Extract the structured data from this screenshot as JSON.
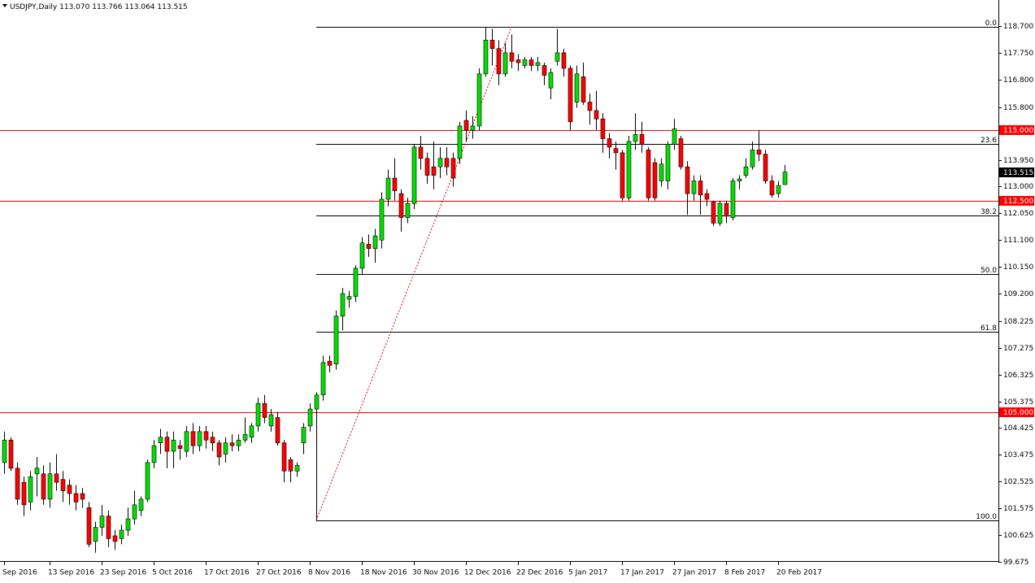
{
  "chart_data": {
    "type": "candlestick",
    "symbol": "USDJPY,Daily",
    "quote_labels": [
      "113.070",
      "113.766",
      "113.064",
      "113.515"
    ],
    "categories": [
      "Sep 2016",
      null,
      null,
      null,
      null,
      null,
      null,
      "13 Sep 2016",
      null,
      null,
      null,
      null,
      null,
      null,
      null,
      "23 Sep 2016",
      null,
      null,
      null,
      null,
      null,
      null,
      null,
      "5 Oct 2016",
      null,
      null,
      null,
      null,
      null,
      null,
      null,
      "17 Oct 2016",
      null,
      null,
      null,
      null,
      null,
      null,
      null,
      "27 Oct 2016",
      null,
      null,
      null,
      null,
      null,
      null,
      null,
      "8 Nov 2016",
      null,
      null,
      null,
      null,
      null,
      null,
      null,
      "18 Nov 2016",
      null,
      null,
      null,
      null,
      null,
      null,
      null,
      "30 Nov 2016",
      null,
      null,
      null,
      null,
      null,
      null,
      null,
      "12 Dec 2016",
      null,
      null,
      null,
      null,
      null,
      null,
      null,
      "22 Dec 2016",
      null,
      null,
      null,
      null,
      null,
      null,
      null,
      "5 Jan 2017",
      null,
      null,
      null,
      null,
      null,
      null,
      null,
      "17 Jan 2017",
      null,
      null,
      null,
      null,
      null,
      null,
      null,
      "27 Jan 2017",
      null,
      null,
      null,
      null,
      null,
      null,
      null,
      "8 Feb 2017",
      null,
      null,
      null,
      null,
      null,
      null,
      null,
      "20 Feb 2017",
      null
    ],
    "open": [
      103.2,
      104.0,
      103.0,
      102.5,
      101.8,
      102.8,
      102.8,
      101.9,
      102.8,
      102.6,
      102.4,
      102.1,
      102.1,
      101.6,
      100.4,
      100.9,
      101.3,
      100.6,
      100.5,
      100.8,
      101.2,
      101.5,
      101.9,
      103.2,
      103.9,
      104.1,
      103.6,
      103.8,
      103.6,
      104.3,
      103.8,
      104.3,
      104.1,
      103.9,
      103.5,
      103.9,
      103.8,
      104.0,
      104.1,
      104.5,
      105.3,
      104.5,
      104.8,
      103.9,
      103.3,
      102.9,
      103.9,
      104.5,
      105.1,
      105.6,
      106.8,
      106.7,
      108.4,
      109.0,
      109.1,
      110.1,
      110.95,
      110.8,
      111.1,
      112.55,
      113.3,
      112.75,
      111.9,
      112.4,
      114.4,
      114.0,
      113.7,
      113.7,
      114.0,
      114.0,
      114.0,
      115.35,
      115.0,
      115.15,
      117.0,
      118.2,
      117.9,
      117.0,
      117.75,
      117.5,
      117.3,
      117.5,
      117.3,
      117.3,
      116.5,
      117.45,
      117.75,
      117.2,
      116.0,
      116.9,
      116.0,
      115.7,
      115.4,
      114.7,
      114.35,
      114.2,
      112.6,
      114.6,
      114.85,
      114.3,
      113.85,
      113.2,
      113.2,
      114.5,
      114.7,
      113.7,
      112.75,
      113.2,
      112.75,
      112.45,
      111.7,
      112.4,
      111.9,
      113.2,
      113.4,
      113.7,
      114.3,
      114.15,
      113.2,
      112.75,
      113.07
    ],
    "high": [
      104.3,
      104.1,
      103.2,
      102.7,
      102.9,
      103.4,
      103.1,
      103.2,
      103.5,
      102.9,
      102.6,
      102.4,
      102.3,
      101.8,
      101.1,
      101.7,
      101.5,
      100.8,
      101.0,
      101.6,
      102.2,
      102.0,
      103.3,
      104.0,
      104.4,
      104.3,
      104.3,
      104.0,
      104.5,
      104.6,
      104.5,
      104.5,
      104.3,
      104.0,
      104.1,
      104.2,
      104.2,
      104.8,
      104.6,
      105.5,
      105.6,
      105.1,
      105.0,
      104.0,
      103.4,
      103.2,
      104.6,
      105.3,
      105.7,
      107.0,
      107.0,
      108.6,
      109.4,
      109.3,
      110.2,
      111.2,
      111.3,
      111.5,
      112.8,
      113.6,
      114.0,
      112.9,
      112.6,
      114.5,
      114.8,
      114.2,
      114.6,
      114.4,
      114.4,
      114.2,
      115.3,
      115.7,
      115.5,
      117.2,
      118.66,
      118.6,
      118.2,
      118.1,
      118.4,
      117.7,
      117.6,
      117.6,
      117.6,
      117.4,
      117.2,
      118.6,
      117.9,
      117.3,
      117.3,
      117.4,
      116.3,
      116.4,
      115.6,
      114.9,
      114.6,
      114.3,
      114.8,
      115.6,
      115.3,
      114.4,
      114.0,
      114.0,
      114.6,
      115.4,
      114.8,
      113.9,
      113.4,
      113.4,
      112.9,
      112.5,
      112.5,
      112.5,
      113.3,
      113.4,
      114.0,
      114.6,
      115.0,
      114.3,
      113.4,
      113.2,
      113.766
    ],
    "low": [
      102.8,
      102.9,
      101.7,
      101.3,
      101.5,
      102.0,
      101.7,
      101.6,
      102.2,
      101.8,
      101.7,
      101.5,
      101.6,
      100.2,
      100.0,
      100.6,
      100.2,
      100.1,
      100.3,
      100.6,
      101.0,
      101.3,
      101.8,
      103.0,
      103.5,
      103.0,
      103.0,
      103.3,
      103.4,
      103.5,
      103.6,
      103.7,
      103.6,
      103.1,
      103.2,
      103.6,
      103.6,
      103.9,
      103.9,
      104.3,
      104.6,
      104.3,
      103.8,
      102.5,
      102.5,
      102.7,
      103.5,
      104.3,
      101.15,
      105.4,
      106.4,
      106.5,
      107.9,
      108.7,
      108.9,
      109.9,
      110.5,
      110.3,
      110.8,
      112.3,
      112.5,
      111.4,
      111.7,
      112.2,
      113.6,
      113.1,
      112.9,
      113.3,
      113.4,
      113.0,
      113.8,
      114.6,
      114.7,
      115.0,
      116.9,
      117.3,
      116.6,
      116.9,
      117.2,
      117.1,
      117.2,
      117.1,
      117.1,
      116.6,
      116.1,
      117.3,
      116.9,
      115.0,
      115.8,
      115.9,
      115.2,
      115.0,
      114.2,
      114.0,
      113.6,
      112.5,
      112.5,
      114.3,
      114.2,
      112.5,
      112.5,
      113.0,
      112.9,
      114.3,
      113.6,
      112.0,
      112.5,
      112.0,
      112.3,
      111.6,
      111.6,
      111.7,
      111.8,
      112.9,
      113.3,
      113.6,
      113.9,
      113.1,
      112.6,
      112.6,
      113.064
    ],
    "close": [
      104.0,
      103.0,
      101.9,
      101.7,
      102.7,
      103.0,
      101.9,
      102.8,
      102.5,
      102.2,
      102.1,
      101.8,
      101.9,
      100.3,
      100.9,
      101.3,
      100.5,
      100.4,
      100.8,
      101.2,
      101.7,
      101.9,
      103.2,
      103.8,
      104.1,
      103.6,
      104.0,
      103.7,
      104.3,
      103.8,
      104.3,
      104.0,
      103.9,
      103.4,
      103.9,
      103.8,
      104.0,
      104.2,
      104.5,
      105.3,
      104.8,
      104.9,
      103.9,
      102.9,
      102.9,
      103.1,
      104.45,
      105.1,
      105.6,
      106.75,
      106.65,
      108.4,
      109.2,
      109.1,
      110.1,
      111.0,
      110.8,
      111.25,
      112.55,
      113.3,
      112.85,
      111.9,
      112.4,
      114.4,
      114.0,
      113.4,
      113.4,
      114.0,
      113.7,
      113.3,
      115.15,
      115.0,
      115.15,
      117.0,
      118.2,
      117.9,
      117.0,
      117.75,
      117.45,
      117.4,
      117.5,
      117.3,
      117.4,
      116.95,
      117.05,
      117.75,
      117.2,
      115.3,
      117.0,
      116.0,
      115.7,
      115.4,
      114.7,
      114.4,
      114.2,
      112.6,
      114.6,
      114.85,
      114.5,
      112.6,
      112.6,
      113.8,
      114.5,
      115.05,
      113.7,
      112.75,
      113.2,
      112.7,
      112.55,
      111.7,
      112.4,
      111.95,
      113.2,
      113.27,
      113.7,
      114.3,
      114.15,
      113.2,
      112.7,
      113.04,
      113.515
    ],
    "up_color": "#00e000",
    "down_color": "#ff0000",
    "ylim": [
      99.675,
      118.7
    ],
    "yticks": [
      {
        "value": 118.7,
        "label": "118.700"
      },
      {
        "value": 117.75,
        "label": "117.750"
      },
      {
        "value": 116.8,
        "label": "116.800"
      },
      {
        "value": 115.8,
        "label": "115.800"
      },
      {
        "value": 113.95,
        "label": "113.950"
      },
      {
        "value": 113.0,
        "label": "113.000"
      },
      {
        "value": 112.05,
        "label": "112.050"
      },
      {
        "value": 111.1,
        "label": "111.100"
      },
      {
        "value": 110.15,
        "label": "110.150"
      },
      {
        "value": 109.2,
        "label": "109.200"
      },
      108.225,
      107.275,
      106.325,
      105.375,
      104.425,
      103.475,
      102.525,
      101.575,
      100.625,
      99.675
    ],
    "price_lines": [
      {
        "value": 115,
        "label": "115.000"
      },
      {
        "value": 112.5,
        "label": "112.500"
      },
      {
        "value": 105,
        "label": "105.000"
      }
    ],
    "price_line_color": "#ff0000",
    "fibonacci": {
      "low": 101.15,
      "high": 118.66,
      "levels": [
        {
          "value": 0,
          "label": "0.0"
        },
        23.6,
        38.2,
        {
          "value": 50,
          "label": "50.0"
        },
        61.8,
        {
          "value": 100,
          "label": "100.0"
        }
      ]
    }
  }
}
